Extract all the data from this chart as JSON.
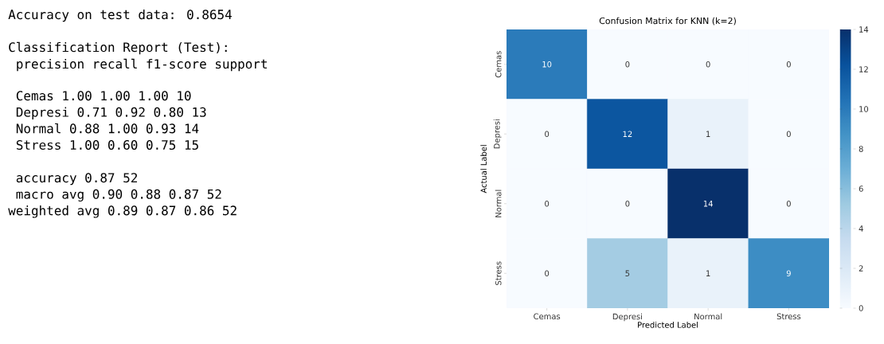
{
  "chart_data": [
    {
      "type": "other",
      "title": "Accuracy on test data: 0.8654",
      "subtitle": "Classification Report (Test):",
      "annotations": [
        "              precision    recall  f1-score   support",
        "       Cemas       1.00      1.00      1.00        10",
        "     Depresi       0.71      0.92      0.80        13",
        "      Normal       0.88      1.00      0.93        14",
        "      Stress       1.00      0.60      0.75        15",
        "    accuracy                           0.87        52",
        "   macro avg       0.90      0.88      0.87        52",
        "weighted avg       0.89      0.87      0.86        52"
      ]
    },
    {
      "type": "heatmap",
      "title": "Confusion Matrix for KNN (k=2)",
      "xlabel": "Predicted Label",
      "ylabel": "Actual Label",
      "categories": [
        "Cemas",
        "Depresi",
        "Normal",
        "Stress"
      ],
      "y_categories": [
        "Cemas",
        "Depresi",
        "Normal",
        "Stress"
      ],
      "cells": [
        [
          10,
          0,
          0,
          0
        ],
        [
          0,
          12,
          1,
          0
        ],
        [
          0,
          0,
          14,
          0
        ],
        [
          0,
          5,
          1,
          9
        ]
      ],
      "data_labels": true,
      "clim": [
        0,
        14
      ],
      "cticks": [
        0,
        2,
        4,
        6,
        8,
        10,
        12,
        14
      ]
    }
  ]
}
